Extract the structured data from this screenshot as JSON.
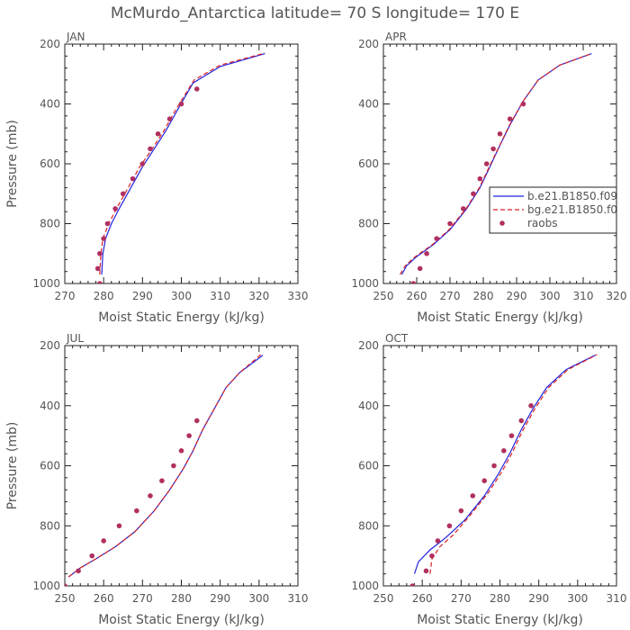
{
  "figure": {
    "title": "McMurdo_Antarctica  latitude= 70 S longitude= 170 E"
  },
  "colors": {
    "series_b": "#2222dd",
    "series_bg": "#dd2222",
    "raobs": "#b03060",
    "axis": "#222222",
    "text": "#555555"
  },
  "legend": {
    "panel": "APR",
    "placement": "right",
    "entries": [
      "b.e21.B1850.f09",
      "bg.e21.B1850.f0",
      "raobs"
    ]
  },
  "chart_data": [
    {
      "type": "line",
      "panel_label": "JAN",
      "xlabel": "Moist Static Energy (kJ/kg)",
      "ylabel": "Pressure (mb)",
      "xlim": [
        270,
        330
      ],
      "ylim": [
        1000,
        200
      ],
      "xticks": [
        270,
        280,
        290,
        300,
        310,
        320,
        330
      ],
      "yticks": [
        200,
        400,
        600,
        800,
        1000
      ],
      "series": [
        {
          "name": "b.e21.B1850.f09",
          "style": "solid",
          "points": [
            [
              279.5,
              970
            ],
            [
              279.8,
              900
            ],
            [
              280.5,
              850
            ],
            [
              282,
              800
            ],
            [
              284,
              750
            ],
            [
              287,
              680
            ],
            [
              290,
              610
            ],
            [
              293,
              550
            ],
            [
              296,
              490
            ],
            [
              299,
              420
            ],
            [
              303,
              330
            ],
            [
              310,
              275
            ],
            [
              321.5,
              232
            ]
          ]
        },
        {
          "name": "bg.e21.B1850.f0",
          "style": "dashed",
          "points": [
            [
              279,
              970
            ],
            [
              279.3,
              900
            ],
            [
              279.8,
              850
            ],
            [
              281.3,
              800
            ],
            [
              283.3,
              750
            ],
            [
              286.3,
              680
            ],
            [
              289.3,
              610
            ],
            [
              292.5,
              550
            ],
            [
              295.5,
              490
            ],
            [
              298.5,
              420
            ],
            [
              303.3,
              320
            ],
            [
              310,
              270
            ],
            [
              321.5,
              230
            ]
          ]
        },
        {
          "name": "raobs",
          "style": "markers",
          "points": [
            [
              279,
              1000
            ],
            [
              278.5,
              950
            ],
            [
              279,
              900
            ],
            [
              280,
              850
            ],
            [
              281,
              800
            ],
            [
              283,
              750
            ],
            [
              285,
              700
            ],
            [
              287.5,
              650
            ],
            [
              290,
              600
            ],
            [
              292,
              550
            ],
            [
              294,
              500
            ],
            [
              297,
              450
            ],
            [
              300,
              400
            ],
            [
              304,
              350
            ]
          ]
        }
      ]
    },
    {
      "type": "line",
      "panel_label": "APR",
      "xlabel": "Moist Static Energy (kJ/kg)",
      "ylabel": "",
      "xlim": [
        250,
        320
      ],
      "ylim": [
        1000,
        200
      ],
      "xticks": [
        250,
        260,
        270,
        280,
        290,
        300,
        310,
        320
      ],
      "yticks": [
        200,
        400,
        600,
        800,
        1000
      ],
      "series": [
        {
          "name": "b.e21.B1850.f09",
          "style": "solid",
          "points": [
            [
              255.5,
              970
            ],
            [
              257,
              940
            ],
            [
              260,
              910
            ],
            [
              265,
              870
            ],
            [
              270,
              820
            ],
            [
              275,
              750
            ],
            [
              279,
              680
            ],
            [
              282,
              610
            ],
            [
              284.5,
              550
            ],
            [
              288,
              470
            ],
            [
              292,
              390
            ],
            [
              296.5,
              320
            ],
            [
              303,
              270
            ],
            [
              312.5,
              232
            ]
          ]
        },
        {
          "name": "bg.e21.B1850.f0",
          "style": "dashed",
          "points": [
            [
              255,
              970
            ],
            [
              256.6,
              940
            ],
            [
              259.6,
              910
            ],
            [
              264.7,
              870
            ],
            [
              269.7,
              820
            ],
            [
              274.8,
              750
            ],
            [
              278.8,
              680
            ],
            [
              281.8,
              610
            ],
            [
              284.4,
              550
            ],
            [
              287.9,
              470
            ],
            [
              292,
              390
            ],
            [
              296.5,
              320
            ],
            [
              303,
              270
            ],
            [
              312.5,
              232
            ]
          ]
        },
        {
          "name": "raobs",
          "style": "markers",
          "points": [
            [
              259,
              1000
            ],
            [
              261,
              950
            ],
            [
              263,
              900
            ],
            [
              266,
              850
            ],
            [
              270,
              800
            ],
            [
              274,
              750
            ],
            [
              277,
              700
            ],
            [
              279,
              650
            ],
            [
              281,
              600
            ],
            [
              283,
              550
            ],
            [
              285,
              500
            ],
            [
              288,
              450
            ],
            [
              292,
              400
            ]
          ]
        }
      ]
    },
    {
      "type": "line",
      "panel_label": "JUL",
      "xlabel": "Moist Static Energy (kJ/kg)",
      "ylabel": "Pressure (mb)",
      "xlim": [
        250,
        310
      ],
      "ylim": [
        1000,
        200
      ],
      "xticks": [
        250,
        260,
        270,
        280,
        290,
        300,
        310
      ],
      "yticks": [
        200,
        400,
        600,
        800,
        1000
      ],
      "series": [
        {
          "name": "b.e21.B1850.f09",
          "style": "solid",
          "points": [
            [
              251,
              970
            ],
            [
              254,
              940
            ],
            [
              258,
              910
            ],
            [
              263,
              870
            ],
            [
              268,
              820
            ],
            [
              273,
              750
            ],
            [
              277,
              680
            ],
            [
              280.5,
              610
            ],
            [
              283,
              550
            ],
            [
              285.5,
              480
            ],
            [
              288.5,
              410
            ],
            [
              291.5,
              340
            ],
            [
              295,
              290
            ],
            [
              301,
              232
            ]
          ]
        },
        {
          "name": "bg.e21.B1850.f0",
          "style": "dashed",
          "points": [
            [
              251,
              970
            ],
            [
              254,
              940
            ],
            [
              258,
              910
            ],
            [
              263,
              870
            ],
            [
              268,
              820
            ],
            [
              273,
              750
            ],
            [
              277,
              680
            ],
            [
              280.5,
              610
            ],
            [
              283,
              550
            ],
            [
              285.5,
              480
            ],
            [
              288.5,
              410
            ],
            [
              291.5,
              340
            ],
            [
              295,
              290
            ],
            [
              300.5,
              230
            ]
          ]
        },
        {
          "name": "raobs",
          "style": "markers",
          "points": [
            [
              250,
              1000
            ],
            [
              253.5,
              950
            ],
            [
              257,
              900
            ],
            [
              260,
              850
            ],
            [
              264,
              800
            ],
            [
              268.5,
              750
            ],
            [
              272,
              700
            ],
            [
              275,
              650
            ],
            [
              278,
              600
            ],
            [
              280,
              550
            ],
            [
              282,
              500
            ],
            [
              284,
              450
            ]
          ]
        }
      ]
    },
    {
      "type": "line",
      "panel_label": "OCT",
      "xlabel": "Moist Static Energy (kJ/kg)",
      "ylabel": "",
      "xlim": [
        250,
        310
      ],
      "ylim": [
        1000,
        200
      ],
      "xticks": [
        250,
        260,
        270,
        280,
        290,
        300,
        310
      ],
      "yticks": [
        200,
        400,
        600,
        800,
        1000
      ],
      "series": [
        {
          "name": "b.e21.B1850.f09",
          "style": "solid",
          "points": [
            [
              258,
              960
            ],
            [
              259,
              920
            ],
            [
              262,
              880
            ],
            [
              266,
              840
            ],
            [
              271,
              780
            ],
            [
              276,
              700
            ],
            [
              279.5,
              630
            ],
            [
              282.5,
              560
            ],
            [
              285.5,
              480
            ],
            [
              288.5,
              410
            ],
            [
              292,
              340
            ],
            [
              297,
              280
            ],
            [
              304.5,
              232
            ]
          ]
        },
        {
          "name": "bg.e21.B1850.f0",
          "style": "dashed",
          "points": [
            [
              262,
              960
            ],
            [
              262.5,
              910
            ],
            [
              264.5,
              870
            ],
            [
              268,
              830
            ],
            [
              272,
              770
            ],
            [
              277,
              690
            ],
            [
              280.5,
              620
            ],
            [
              283,
              560
            ],
            [
              286,
              480
            ],
            [
              289,
              410
            ],
            [
              292.5,
              340
            ],
            [
              297.5,
              280
            ],
            [
              305,
              230
            ]
          ]
        },
        {
          "name": "raobs",
          "style": "markers",
          "points": [
            [
              257.5,
              1000
            ],
            [
              261,
              950
            ],
            [
              262.5,
              900
            ],
            [
              264,
              850
            ],
            [
              267,
              800
            ],
            [
              270,
              750
            ],
            [
              273,
              700
            ],
            [
              276,
              650
            ],
            [
              278.5,
              600
            ],
            [
              281,
              550
            ],
            [
              283,
              500
            ],
            [
              285.5,
              450
            ],
            [
              288,
              400
            ]
          ]
        }
      ]
    }
  ]
}
